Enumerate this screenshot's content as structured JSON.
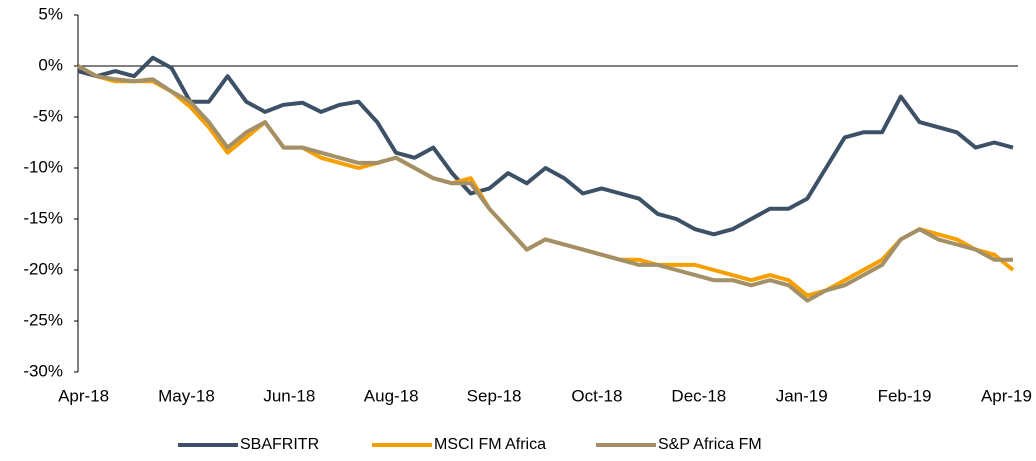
{
  "chart_data": {
    "type": "line",
    "x": [
      0,
      2,
      4,
      6,
      8,
      10,
      12,
      14,
      16,
      18,
      20,
      22,
      24,
      26,
      28,
      30,
      32,
      34,
      36,
      38,
      40,
      42,
      44,
      46,
      48,
      50,
      52,
      54,
      56,
      58,
      60,
      62,
      64,
      66,
      68,
      70,
      72,
      74,
      76,
      78,
      80,
      82,
      84,
      86,
      88,
      90,
      92,
      94,
      96,
      98,
      100
    ],
    "series": [
      {
        "name": "SBAFRITR",
        "color": "#3d5166",
        "values": [
          -0.5,
          -1,
          -0.5,
          -1,
          0.8,
          -0.2,
          -3.5,
          -3.5,
          -1,
          -3.5,
          -4.5,
          -3.8,
          -3.6,
          -4.5,
          -3.8,
          -3.5,
          -5.5,
          -8.5,
          -9,
          -8,
          -10.5,
          -12.5,
          -12,
          -10.5,
          -11.5,
          -10,
          -11,
          -12.5,
          -12,
          -12.5,
          -13,
          -14.5,
          -15,
          -16,
          -16.5,
          -16,
          -15,
          -14,
          -14,
          -13,
          -10,
          -7,
          -6.5,
          -6.5,
          -3,
          -5.5,
          -6,
          -6.5,
          -8,
          -7.5,
          -8
        ]
      },
      {
        "name": "MSCI FM Africa",
        "color": "#f5a000",
        "values": [
          0,
          -1,
          -1.5,
          -1.5,
          -1.5,
          -2.5,
          -4,
          -6,
          -8.5,
          -7,
          -5.5,
          -8,
          -8,
          -9,
          -9.5,
          -10,
          -9.5,
          -9,
          -10,
          -11,
          -11.5,
          -11,
          -14,
          -16,
          -18,
          -17,
          -17.5,
          -18,
          -18.5,
          -19,
          -19,
          -19.5,
          -19.5,
          -19.5,
          -20,
          -20.5,
          -21,
          -20.5,
          -21,
          -22.5,
          -22,
          -21,
          -20,
          -19,
          -17,
          -16,
          -16.5,
          -17,
          -18,
          -18.5,
          -20
        ]
      },
      {
        "name": "S&P Africa FM",
        "color": "#a39068",
        "values": [
          0,
          -1,
          -1.3,
          -1.5,
          -1.3,
          -2.5,
          -3.5,
          -5.5,
          -8,
          -6.5,
          -5.5,
          -8,
          -8,
          -8.5,
          -9,
          -9.5,
          -9.5,
          -9,
          -10,
          -11,
          -11.5,
          -11.5,
          -14,
          -16,
          -18,
          -17,
          -17.5,
          -18,
          -18.5,
          -19,
          -19.5,
          -19.5,
          -20,
          -20.5,
          -21,
          -21,
          -21.5,
          -21,
          -21.5,
          -23,
          -22,
          -21.5,
          -20.5,
          -19.5,
          -17,
          -16,
          -17,
          -17.5,
          -18,
          -19,
          -19
        ]
      }
    ],
    "xlim": [
      0,
      100
    ],
    "xticks": [
      {
        "value": 0.6,
        "label": "Apr-18"
      },
      {
        "value": 11.6,
        "label": "May-18"
      },
      {
        "value": 22.6,
        "label": "Jun-18"
      },
      {
        "value": 33.5,
        "label": "Aug-18"
      },
      {
        "value": 44.5,
        "label": "Sep-18"
      },
      {
        "value": 55.5,
        "label": "Oct-18"
      },
      {
        "value": 66.4,
        "label": "Dec-18"
      },
      {
        "value": 77.4,
        "label": "Jan-19"
      },
      {
        "value": 88.4,
        "label": "Feb-19"
      },
      {
        "value": 99.3,
        "label": "Apr-19"
      }
    ],
    "ylim": [
      -30,
      5
    ],
    "yticks": [
      {
        "value": 5,
        "label": "5%"
      },
      {
        "value": 0,
        "label": "0%"
      },
      {
        "value": -5,
        "label": "-5%"
      },
      {
        "value": -10,
        "label": "-10%"
      },
      {
        "value": -15,
        "label": "-15%"
      },
      {
        "value": -20,
        "label": "-20%"
      },
      {
        "value": -25,
        "label": "-25%"
      },
      {
        "value": -30,
        "label": "-30%"
      }
    ],
    "zero_line": true,
    "legend": "bottom"
  }
}
